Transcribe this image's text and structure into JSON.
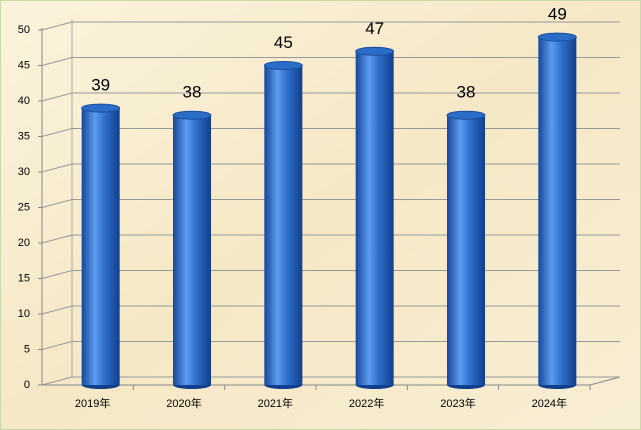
{
  "chart_data": {
    "type": "bar",
    "categories": [
      "2019年",
      "2020年",
      "2021年",
      "2022年",
      "2023年",
      "2024年"
    ],
    "values": [
      39,
      38,
      45,
      47,
      38,
      49
    ],
    "color": "#2a6cc6",
    "ylim": [
      0,
      50
    ],
    "yticks": [
      0,
      5,
      10,
      15,
      20,
      25,
      30,
      35,
      40,
      45,
      50
    ],
    "grid": true
  }
}
